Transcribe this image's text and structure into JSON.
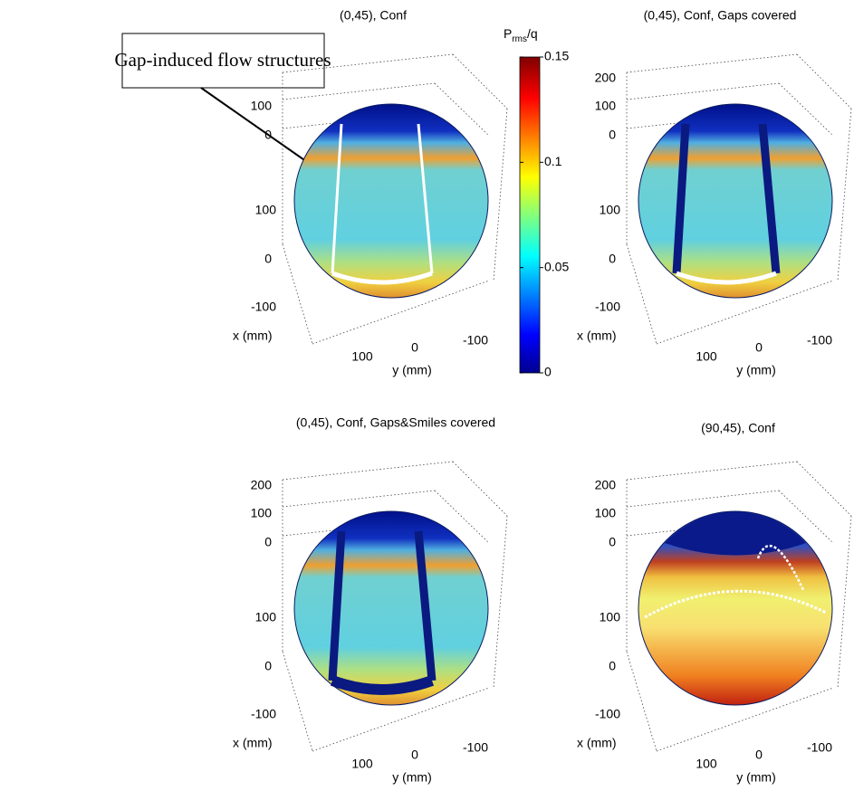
{
  "annotation": "Gap-induced flow structures",
  "colorbar": {
    "label": {
      "main": "P",
      "sub": "rms",
      "tail": "/q"
    },
    "lim": [
      0,
      0.15
    ],
    "ticks": [
      0,
      0.05,
      0.1,
      0.15
    ]
  },
  "panels": [
    {
      "title": "(0,45), Conf",
      "z_ticks": [
        "100",
        "0"
      ],
      "x_ticks": [
        "100",
        "0",
        "-100"
      ],
      "x_label": "x (mm)",
      "y_ticks": [
        "100",
        "0",
        "-100"
      ],
      "y_label": "y (mm)"
    },
    {
      "title": "(0,45), Conf, Gaps covered",
      "z_ticks": [
        "200",
        "100",
        "0"
      ],
      "x_ticks": [
        "100",
        "0",
        "-100"
      ],
      "x_label": "x (mm)",
      "y_ticks": [
        "100",
        "0",
        "-100"
      ],
      "y_label": "y (mm)"
    },
    {
      "title": "(0,45), Conf, Gaps&Smiles covered",
      "z_ticks": [
        "200",
        "100",
        "0"
      ],
      "x_ticks": [
        "100",
        "0",
        "-100"
      ],
      "x_label": "x (mm)",
      "y_ticks": [
        "100",
        "0",
        "-100"
      ],
      "y_label": "y (mm)"
    },
    {
      "title": "(90,45), Conf",
      "z_ticks": [
        "200",
        "100",
        "0"
      ],
      "x_ticks": [
        "100",
        "0",
        "-100"
      ],
      "x_label": "x (mm)",
      "y_ticks": [
        "100",
        "0",
        "-100"
      ],
      "y_label": "y (mm)"
    }
  ]
}
